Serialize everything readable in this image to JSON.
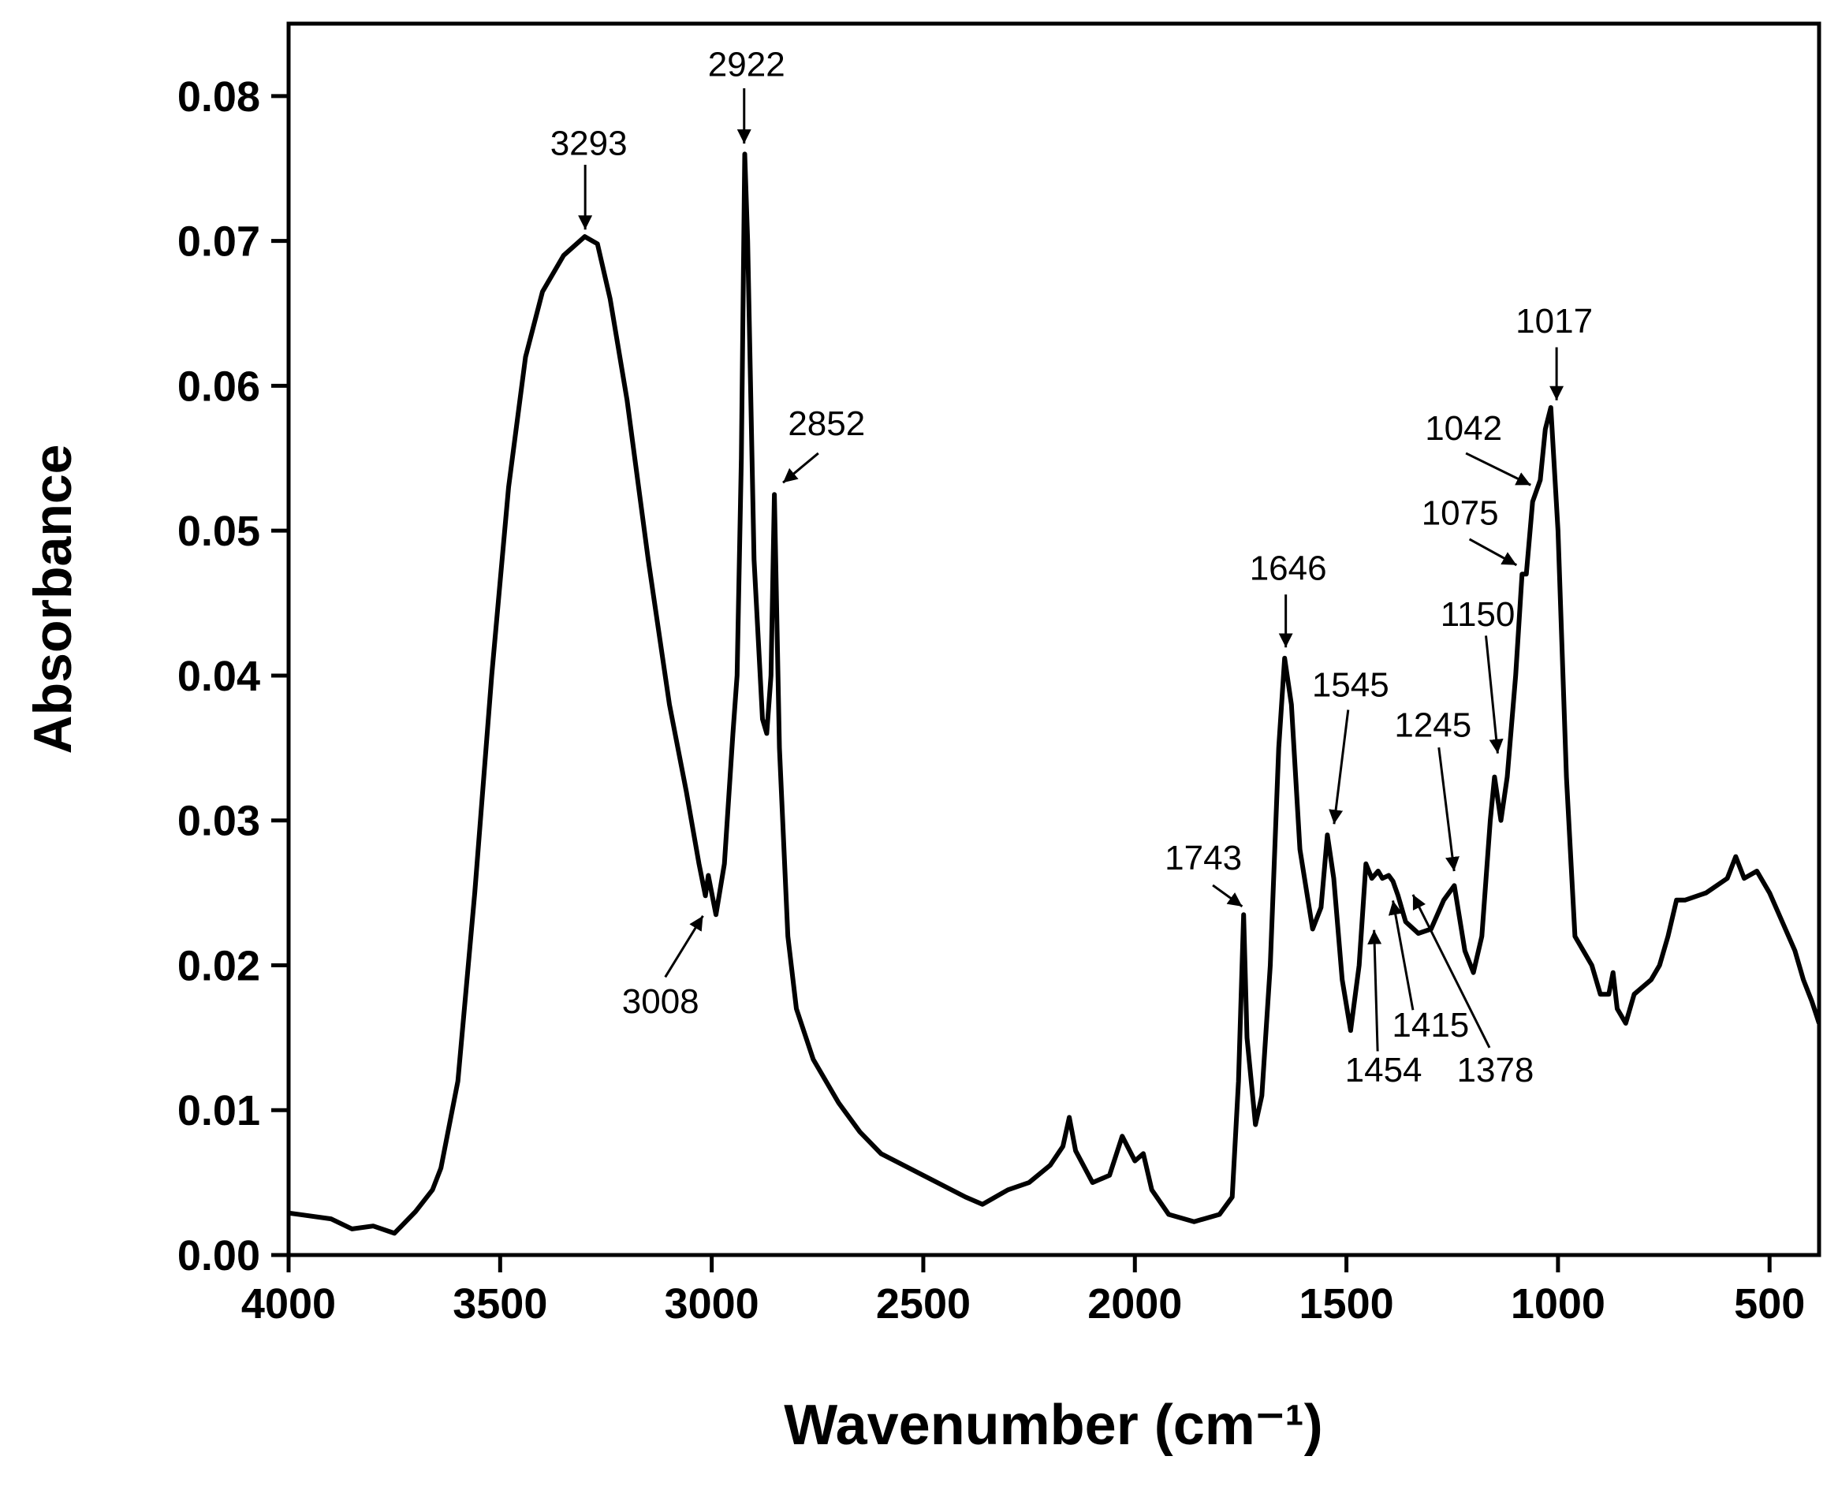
{
  "chart_data": {
    "type": "line",
    "x_label": "Wavenumber (cm⁻¹)",
    "y_label": "Absorbance",
    "xlim": [
      4000,
      383
    ],
    "ylim": [
      0,
      0.085
    ],
    "xticks": [
      4000,
      3500,
      3000,
      2500,
      2000,
      1500,
      1000,
      500
    ],
    "yticks": [
      {
        "value": 0,
        "label": "0.00"
      },
      0.01,
      0.02,
      0.03,
      0.04,
      0.05,
      0.06,
      0.07,
      0.08
    ],
    "series": [
      {
        "color": "#000000",
        "x": [
          4000,
          3900,
          3850,
          3800,
          3750,
          3700,
          3660,
          3640,
          3600,
          3560,
          3520,
          3480,
          3440,
          3400,
          3350,
          3300,
          3270,
          3240,
          3200,
          3150,
          3100,
          3060,
          3030,
          3015,
          3008,
          3000,
          2990,
          2970,
          2950,
          2940,
          2930,
          2922,
          2915,
          2900,
          2880,
          2870,
          2860,
          2852,
          2840,
          2820,
          2800,
          2760,
          2700,
          2650,
          2600,
          2500,
          2400,
          2360,
          2300,
          2250,
          2200,
          2170,
          2155,
          2140,
          2100,
          2060,
          2030,
          2000,
          1980,
          1960,
          1920,
          1860,
          1800,
          1770,
          1755,
          1743,
          1735,
          1715,
          1700,
          1680,
          1660,
          1646,
          1630,
          1610,
          1580,
          1560,
          1545,
          1530,
          1510,
          1490,
          1470,
          1454,
          1440,
          1425,
          1415,
          1400,
          1390,
          1378,
          1360,
          1330,
          1300,
          1270,
          1245,
          1220,
          1200,
          1180,
          1160,
          1150,
          1135,
          1120,
          1100,
          1085,
          1075,
          1060,
          1042,
          1030,
          1017,
          1000,
          980,
          960,
          940,
          920,
          900,
          880,
          870,
          860,
          840,
          820,
          800,
          780,
          760,
          740,
          720,
          700,
          650,
          600,
          580,
          560,
          530,
          500,
          470,
          440,
          420,
          400,
          383
        ],
        "values": [
          0.0029,
          0.0025,
          0.0018,
          0.002,
          0.0015,
          0.003,
          0.0045,
          0.006,
          0.012,
          0.025,
          0.04,
          0.053,
          0.062,
          0.0665,
          0.069,
          0.0703,
          0.0698,
          0.066,
          0.059,
          0.048,
          0.038,
          0.032,
          0.027,
          0.0248,
          0.0262,
          0.025,
          0.0235,
          0.027,
          0.036,
          0.04,
          0.055,
          0.076,
          0.07,
          0.048,
          0.037,
          0.036,
          0.04,
          0.0525,
          0.035,
          0.022,
          0.017,
          0.0135,
          0.0105,
          0.0085,
          0.007,
          0.0055,
          0.004,
          0.0035,
          0.0045,
          0.005,
          0.0062,
          0.0075,
          0.0095,
          0.0072,
          0.005,
          0.0055,
          0.0082,
          0.0065,
          0.007,
          0.0045,
          0.0028,
          0.0023,
          0.0028,
          0.004,
          0.012,
          0.0235,
          0.015,
          0.009,
          0.011,
          0.02,
          0.035,
          0.0412,
          0.038,
          0.028,
          0.0225,
          0.024,
          0.029,
          0.026,
          0.019,
          0.0155,
          0.02,
          0.027,
          0.026,
          0.0265,
          0.026,
          0.0262,
          0.0258,
          0.0248,
          0.023,
          0.0222,
          0.0225,
          0.0245,
          0.0255,
          0.021,
          0.0195,
          0.022,
          0.03,
          0.033,
          0.03,
          0.033,
          0.04,
          0.047,
          0.047,
          0.052,
          0.0535,
          0.057,
          0.0585,
          0.05,
          0.033,
          0.022,
          0.021,
          0.02,
          0.018,
          0.018,
          0.0195,
          0.017,
          0.016,
          0.018,
          0.0185,
          0.019,
          0.02,
          0.022,
          0.0245,
          0.0245,
          0.025,
          0.026,
          0.0275,
          0.026,
          0.0265,
          0.025,
          0.023,
          0.021,
          0.019,
          0.0175,
          0.016
        ]
      }
    ],
    "annotations": [
      3293,
      2922,
      2852,
      3008,
      1743,
      1646,
      1545,
      1245,
      1150,
      1075,
      1042,
      1017,
      1454,
      1415,
      1378
    ]
  }
}
